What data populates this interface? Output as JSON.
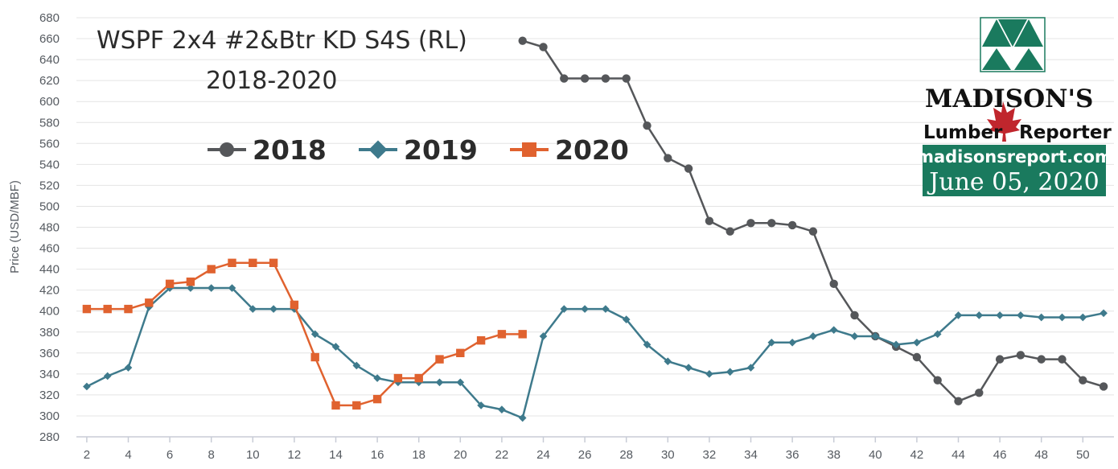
{
  "chart_data": {
    "type": "line",
    "title": "WSPF 2x4 #2&Btr KD S4S (RL)",
    "subtitle": "2018-2020",
    "xlabel": "",
    "ylabel": "Price (USD/MBF)",
    "xlim": [
      1.5,
      51.5
    ],
    "ylim": [
      280,
      680
    ],
    "y_ticks": [
      280,
      300,
      320,
      340,
      360,
      380,
      400,
      420,
      440,
      460,
      480,
      500,
      520,
      540,
      560,
      580,
      600,
      620,
      640,
      660,
      680
    ],
    "x_ticks": [
      2,
      4,
      6,
      8,
      10,
      12,
      14,
      16,
      18,
      20,
      22,
      24,
      26,
      28,
      30,
      32,
      34,
      36,
      38,
      40,
      42,
      44,
      46,
      48,
      50
    ],
    "grid": "horizontal",
    "legend_position": "top-left",
    "series": [
      {
        "name": "2018",
        "color": "#55575a",
        "marker": "circle",
        "x": [
          23,
          24,
          25,
          26,
          27,
          28,
          29,
          30,
          31,
          32,
          33,
          34,
          35,
          36,
          37,
          38,
          39,
          40,
          41,
          42,
          43,
          44,
          45,
          46,
          47,
          48,
          49,
          50,
          51
        ],
        "values": [
          658,
          652,
          622,
          622,
          622,
          622,
          577,
          546,
          536,
          486,
          476,
          484,
          484,
          482,
          476,
          426,
          396,
          376,
          366,
          356,
          334,
          314,
          322,
          354,
          358,
          354,
          354,
          334,
          328
        ]
      },
      {
        "name": "2019",
        "color": "#3e7a8c",
        "marker": "diamond",
        "x": [
          2,
          3,
          4,
          5,
          6,
          7,
          8,
          9,
          10,
          11,
          12,
          13,
          14,
          15,
          16,
          17,
          18,
          19,
          20,
          21,
          22,
          23,
          24,
          25,
          26,
          27,
          28,
          29,
          30,
          31,
          32,
          33,
          34,
          35,
          36,
          37,
          38,
          39,
          40,
          41,
          42,
          43,
          44,
          45,
          46,
          47,
          48,
          49,
          50,
          51
        ],
        "values": [
          328,
          338,
          346,
          404,
          422,
          422,
          422,
          422,
          402,
          402,
          402,
          378,
          366,
          348,
          336,
          332,
          332,
          332,
          332,
          310,
          306,
          298,
          376,
          402,
          402,
          402,
          392,
          368,
          352,
          346,
          340,
          342,
          346,
          370,
          370,
          376,
          382,
          376,
          376,
          368,
          370,
          378,
          396,
          396,
          396,
          396,
          394,
          394,
          394,
          398
        ]
      },
      {
        "name": "2020",
        "color": "#e0622f",
        "marker": "square",
        "x": [
          2,
          3,
          4,
          5,
          6,
          7,
          8,
          9,
          10,
          11,
          12,
          13,
          14,
          15,
          16,
          17,
          18,
          19,
          20,
          21,
          22,
          23
        ],
        "values": [
          402,
          402,
          402,
          408,
          426,
          428,
          440,
          446,
          446,
          446,
          406,
          356,
          310,
          310,
          316,
          336,
          336,
          354,
          360,
          372,
          378,
          378
        ]
      }
    ]
  },
  "brand": {
    "name": "MADISON'S",
    "sub_left": "Lumber",
    "sub_right": "Reporter",
    "url": "madisonsreport.com",
    "date": "June 05, 2020",
    "accent": "#1a7a5e",
    "maple_color": "#c0262d"
  }
}
